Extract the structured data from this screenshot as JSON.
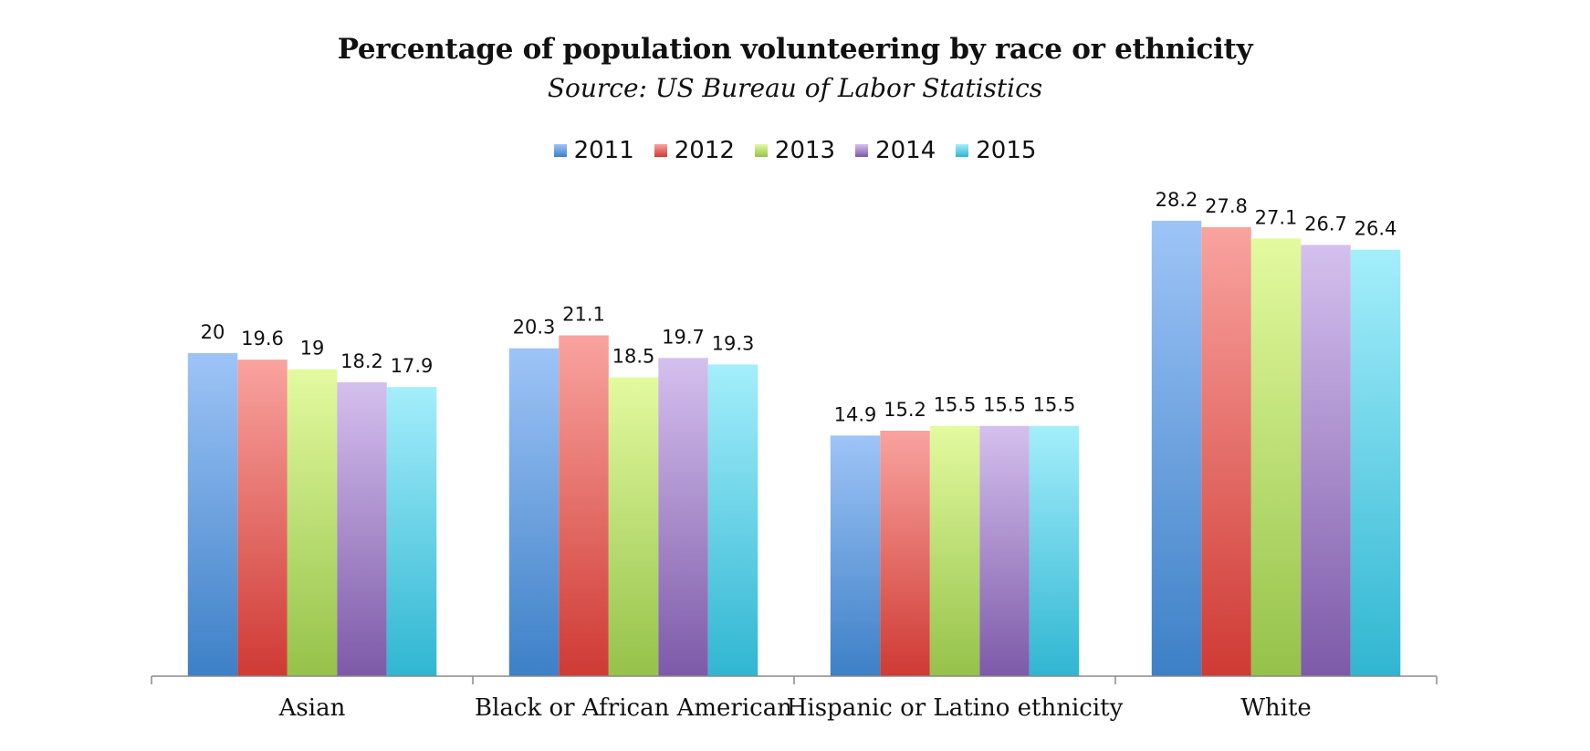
{
  "chart_data": {
    "type": "bar",
    "title": "Percentage of population volunteering by race or ethnicity",
    "subtitle": "Source: US Bureau of Labor Statistics",
    "categories": [
      "Asian",
      "Black or African American",
      "Hispanic or Latino ethnicity",
      "White"
    ],
    "series": [
      {
        "name": "2011",
        "values": [
          20,
          20.3,
          14.9,
          28.2
        ],
        "color_top": "#9ec4f7",
        "color_bottom": "#3d80c6"
      },
      {
        "name": "2012",
        "values": [
          19.6,
          21.1,
          15.2,
          27.8
        ],
        "color_top": "#f9a39f",
        "color_bottom": "#cf3a34"
      },
      {
        "name": "2013",
        "values": [
          19,
          18.5,
          15.5,
          27.1
        ],
        "color_top": "#e3fa9f",
        "color_bottom": "#95c24a"
      },
      {
        "name": "2014",
        "values": [
          18.2,
          19.7,
          15.5,
          26.7
        ],
        "color_top": "#d4c0ee",
        "color_bottom": "#7d5aa8"
      },
      {
        "name": "2015",
        "values": [
          17.9,
          19.3,
          15.5,
          26.4
        ],
        "color_top": "#a4eefb",
        "color_bottom": "#30b6d2"
      }
    ],
    "xlabel": "",
    "ylabel": "",
    "ylim": [
      0,
      30
    ],
    "grid": false,
    "legend_position": "top-center"
  }
}
